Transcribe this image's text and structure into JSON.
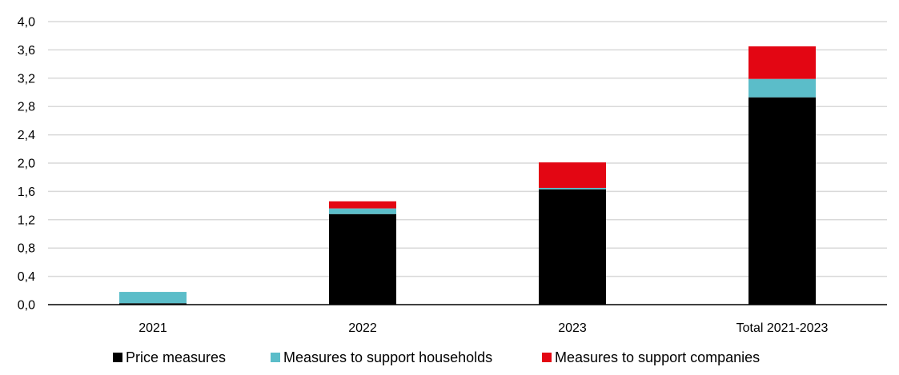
{
  "chart_data": {
    "type": "bar",
    "stacked": true,
    "title": "",
    "xlabel": "",
    "ylabel": "",
    "categories": [
      "2021",
      "2022",
      "2023",
      "Total 2021-2023"
    ],
    "series": [
      {
        "name": "Price measures",
        "color": "#000000",
        "values": [
          0.02,
          1.28,
          1.63,
          2.93
        ]
      },
      {
        "name": "Measures to support households",
        "color": "#5bbdc9",
        "values": [
          0.16,
          0.08,
          0.02,
          0.26
        ]
      },
      {
        "name": "Measures to support companies",
        "color": "#e30613",
        "values": [
          0.0,
          0.1,
          0.36,
          0.46
        ]
      }
    ],
    "ylim": [
      0,
      4.0
    ],
    "yticks": [
      "0,0",
      "0,4",
      "0,8",
      "1,2",
      "1,6",
      "2,0",
      "2,4",
      "2,8",
      "3,2",
      "3,6",
      "4,0"
    ],
    "grid": true,
    "legend_position": "bottom"
  }
}
